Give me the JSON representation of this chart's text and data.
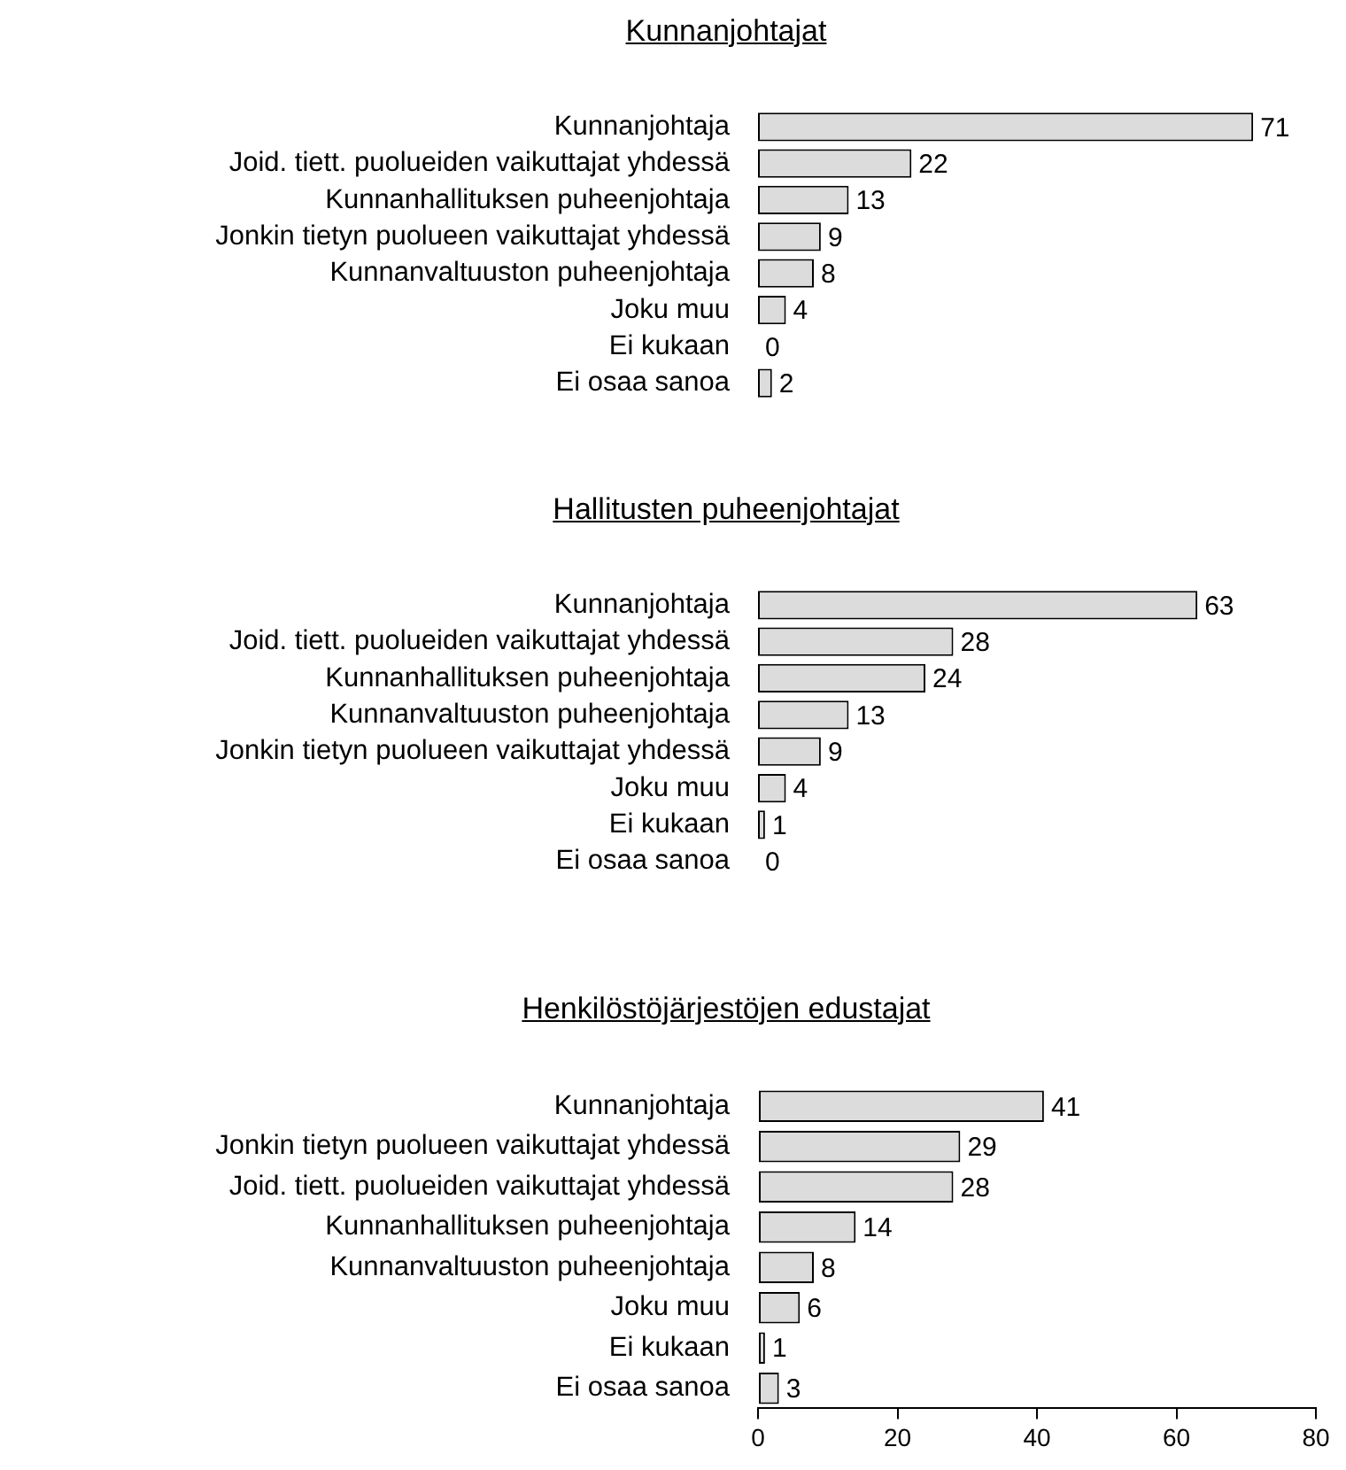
{
  "chart_data": [
    {
      "type": "bar",
      "orientation": "horizontal",
      "title": "Kunnanjohtajat",
      "categories": [
        "Kunnanjohtaja",
        "Joid. tiett. puolueiden vaikuttajat yhdessä",
        "Kunnanhallituksen puheenjohtaja",
        "Jonkin tietyn puolueen vaikuttajat yhdessä",
        "Kunnanvaltuuston puheenjohtaja",
        "Joku muu",
        "Ei kukaan",
        "Ei osaa sanoa"
      ],
      "values": [
        71,
        22,
        13,
        9,
        8,
        4,
        0,
        2
      ],
      "color": "#dcdcdc",
      "data_labels": true,
      "xlim": [
        0,
        80
      ],
      "tick_labels": "y"
    },
    {
      "type": "bar",
      "orientation": "horizontal",
      "title": "Hallitusten puheenjohtajat",
      "categories": [
        "Kunnanjohtaja",
        "Joid. tiett. puolueiden vaikuttajat yhdessä",
        "Kunnanhallituksen puheenjohtaja",
        "Kunnanvaltuuston puheenjohtaja",
        "Jonkin tietyn puolueen vaikuttajat yhdessä",
        "Joku muu",
        "Ei kukaan",
        "Ei osaa sanoa"
      ],
      "values": [
        63,
        28,
        24,
        13,
        9,
        4,
        1,
        0
      ],
      "color": "#dcdcdc",
      "data_labels": true,
      "xlim": [
        0,
        80
      ],
      "tick_labels": "y"
    },
    {
      "type": "bar",
      "orientation": "horizontal",
      "title": "Henkilöstöjärjestöjen edustajat",
      "categories": [
        "Kunnanjohtaja",
        "Jonkin tietyn puolueen vaikuttajat yhdessä",
        "Joid. tiett. puolueiden vaikuttajat yhdessä",
        "Kunnanhallituksen puheenjohtaja",
        "Kunnanvaltuuston puheenjohtaja",
        "Joku muu",
        "Ei kukaan",
        "Ei osaa sanoa"
      ],
      "values": [
        41,
        29,
        28,
        14,
        8,
        6,
        1,
        3
      ],
      "color": "#dcdcdc",
      "data_labels": true,
      "xlim": [
        0,
        80
      ],
      "xticks": [
        0,
        20,
        40,
        60,
        80
      ]
    }
  ]
}
